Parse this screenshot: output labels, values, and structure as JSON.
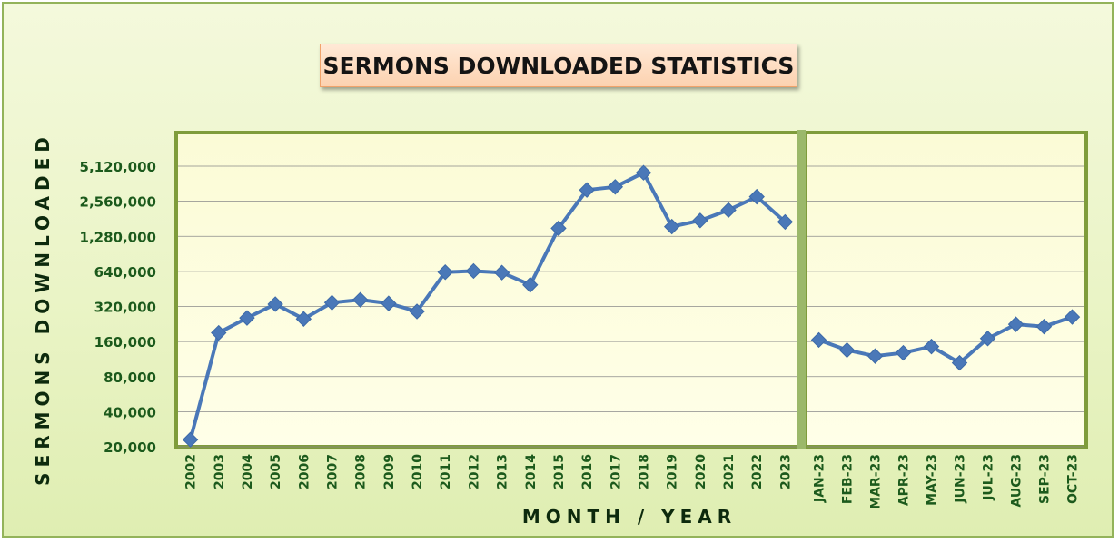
{
  "title": "SERMONS DOWNLOADED STATISTICS",
  "colors": {
    "series": "#4a78b8",
    "plot_border": "#7f9c3b",
    "tick_text": "#1c5a1c",
    "divider": "#9bb86a"
  },
  "chart_data": {
    "type": "line",
    "title": "SERMONS DOWNLOADED STATISTICS",
    "xlabel": "MONTH / YEAR",
    "ylabel": "SERMONS DOWNLOADED",
    "yscale": "log2",
    "ylim": [
      20000,
      7000000
    ],
    "yticks": [
      20000,
      40000,
      80000,
      160000,
      320000,
      640000,
      1280000,
      2560000,
      5120000
    ],
    "ytick_labels": [
      "20,000",
      "40,000",
      "80,000",
      "160,000",
      "320,000",
      "640,000",
      "1,280,000",
      "2,560,000",
      "5,120,000"
    ],
    "grid": true,
    "legend": "none",
    "panels": [
      {
        "name": "yearly",
        "categories": [
          "2002",
          "2003",
          "2004",
          "2005",
          "2006",
          "2007",
          "2008",
          "2009",
          "2010",
          "2011",
          "2012",
          "2013",
          "2014",
          "2015",
          "2016",
          "2017",
          "2018",
          "2019",
          "2020",
          "2021",
          "2022",
          "2023"
        ],
        "values": [
          23000,
          190000,
          255000,
          335000,
          250000,
          345000,
          365000,
          340000,
          290000,
          630000,
          645000,
          625000,
          490000,
          1500000,
          3200000,
          3400000,
          4500000,
          1550000,
          1750000,
          2150000,
          2800000,
          1700000
        ]
      },
      {
        "name": "monthly",
        "categories": [
          "JAN-23",
          "FEB-23",
          "MAR-23",
          "APR-23",
          "MAY-23",
          "JUN-23",
          "JUL-23",
          "AUG-23",
          "SEP-23",
          "OCT-23"
        ],
        "values": [
          165000,
          135000,
          120000,
          128000,
          145000,
          105000,
          170000,
          225000,
          215000,
          260000
        ]
      }
    ]
  }
}
